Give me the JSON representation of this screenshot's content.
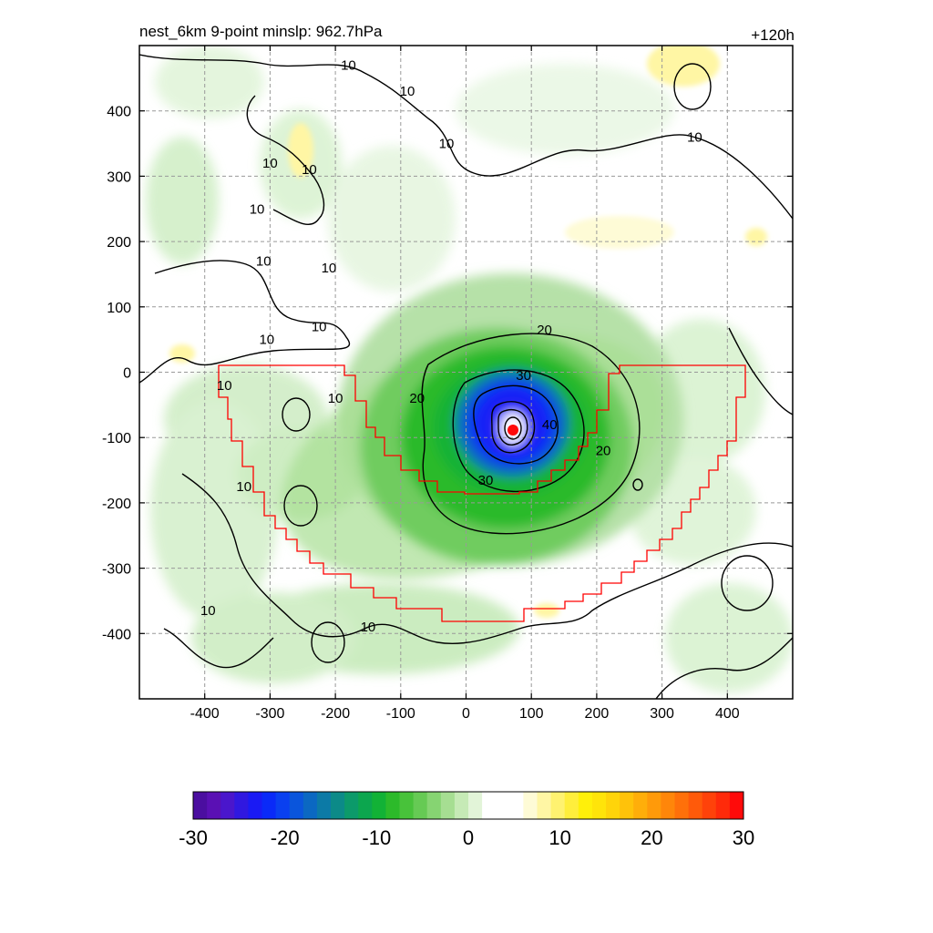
{
  "chart_data": {
    "type": "heatmap",
    "title_left": "nest_6km  9-point minslp: 962.7hPa",
    "title_right": "+120h",
    "xlim": [
      -500,
      500
    ],
    "ylim": [
      -500,
      500
    ],
    "xticks": [
      -400,
      -300,
      -200,
      -100,
      0,
      100,
      200,
      300,
      400
    ],
    "yticks": [
      -400,
      -300,
      -200,
      -100,
      0,
      100,
      200,
      300,
      400
    ],
    "grid": true,
    "storm_center": {
      "x": 70,
      "y": -88
    },
    "contour_labels": [
      {
        "text": "10",
        "x": -180,
        "y": 470
      },
      {
        "text": "10",
        "x": -90,
        "y": 430
      },
      {
        "text": "10",
        "x": -30,
        "y": 350
      },
      {
        "text": "10",
        "x": -240,
        "y": 310
      },
      {
        "text": "10",
        "x": -310,
        "y": 170
      },
      {
        "text": "10",
        "x": -210,
        "y": 160
      },
      {
        "text": "10",
        "x": -300,
        "y": 320
      },
      {
        "text": "10",
        "x": -320,
        "y": 250
      },
      {
        "text": "10",
        "x": -225,
        "y": 70
      },
      {
        "text": "10",
        "x": -305,
        "y": 50
      },
      {
        "text": "10",
        "x": -370,
        "y": -20
      },
      {
        "text": "10",
        "x": -200,
        "y": -40
      },
      {
        "text": "10",
        "x": 350,
        "y": 360
      },
      {
        "text": "10",
        "x": -340,
        "y": -175
      },
      {
        "text": "10",
        "x": -395,
        "y": -365
      },
      {
        "text": "10",
        "x": -150,
        "y": -390
      },
      {
        "text": "20",
        "x": 120,
        "y": 65
      },
      {
        "text": "20",
        "x": -75,
        "y": -40
      },
      {
        "text": "20",
        "x": 210,
        "y": -120
      },
      {
        "text": "30",
        "x": 88,
        "y": -5
      },
      {
        "text": "30",
        "x": 30,
        "y": -165
      },
      {
        "text": "40",
        "x": 128,
        "y": -80
      }
    ],
    "colorbar": {
      "min": -30,
      "max": 30,
      "tick_labels": [
        "-30",
        "-20",
        "-10",
        "0",
        "10",
        "20",
        "30"
      ],
      "colors": [
        "#4b0ea0",
        "#5a10b4",
        "#4a16cc",
        "#3018e0",
        "#1a1af4",
        "#0a2af8",
        "#0a40f0",
        "#0a55dc",
        "#0b68c2",
        "#0c7aa6",
        "#0c8a88",
        "#0c9a6a",
        "#0ca64e",
        "#12b236",
        "#2cba2a",
        "#48c23a",
        "#66ca54",
        "#86d472",
        "#a6de92",
        "#c6eab6",
        "#e2f4d8",
        "#ffffff",
        "#ffffff",
        "#ffffff",
        "#fefbd6",
        "#fff6a4",
        "#fff270",
        "#ffee3c",
        "#fff00a",
        "#ffe40a",
        "#ffd40a",
        "#ffc20a",
        "#ffae0a",
        "#ff9a0a",
        "#ff860a",
        "#ff700a",
        "#ff5a0a",
        "#ff420a",
        "#ff2a0a",
        "#ff0a0a"
      ]
    }
  }
}
